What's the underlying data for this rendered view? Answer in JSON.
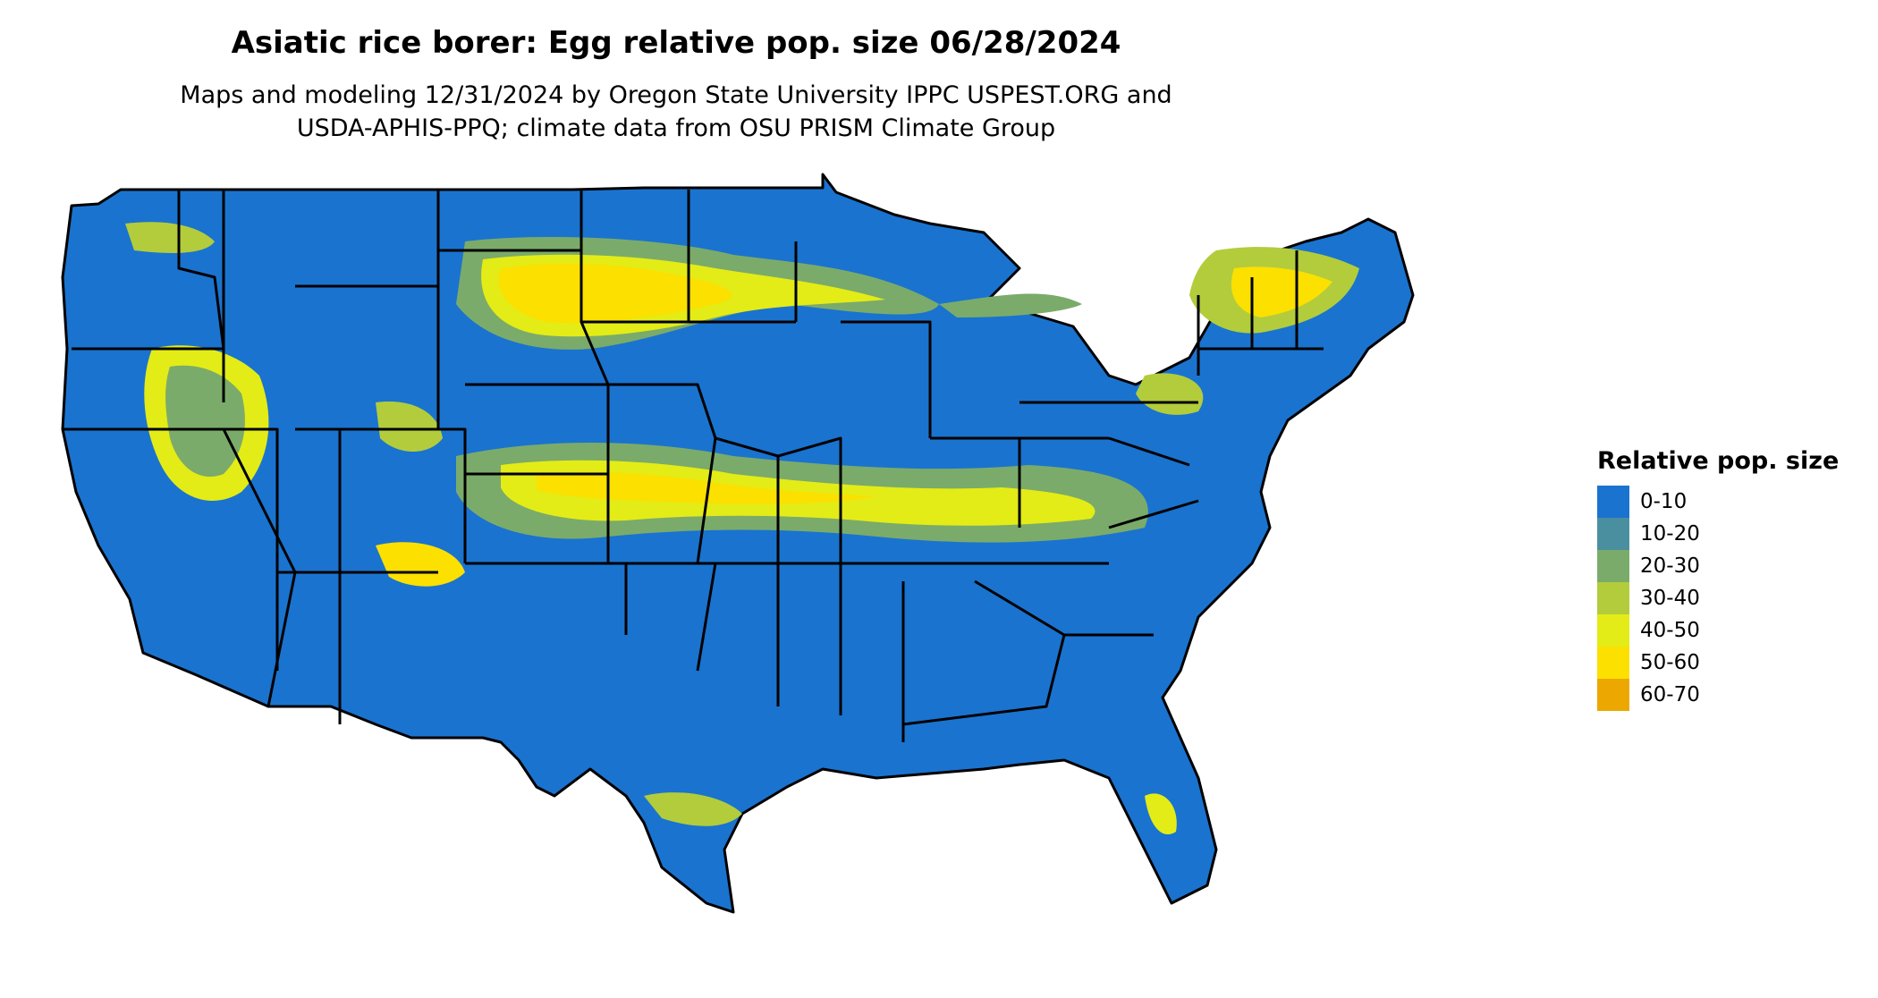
{
  "header": {
    "title": "Asiatic rice borer: Egg relative pop. size 06/28/2024",
    "subtitle_line1": "Maps and modeling 12/31/2024 by Oregon State University IPPC USPEST.ORG and",
    "subtitle_line2": "USDA-APHIS-PPQ; climate data from OSU PRISM Climate Group"
  },
  "legend": {
    "title": "Relative pop. size",
    "items": [
      {
        "label": "0-10",
        "color": "#1a73cf"
      },
      {
        "label": "10-20",
        "color": "#4a8fa0"
      },
      {
        "label": "20-30",
        "color": "#7bab6a"
      },
      {
        "label": "30-40",
        "color": "#b2cc3c"
      },
      {
        "label": "40-50",
        "color": "#e3ec16"
      },
      {
        "label": "50-60",
        "color": "#fbe000"
      },
      {
        "label": "60-70",
        "color": "#eca800"
      }
    ]
  },
  "map": {
    "region": "contiguous-united-states",
    "base_color": "#1a73cf",
    "border_color": "#000000"
  }
}
